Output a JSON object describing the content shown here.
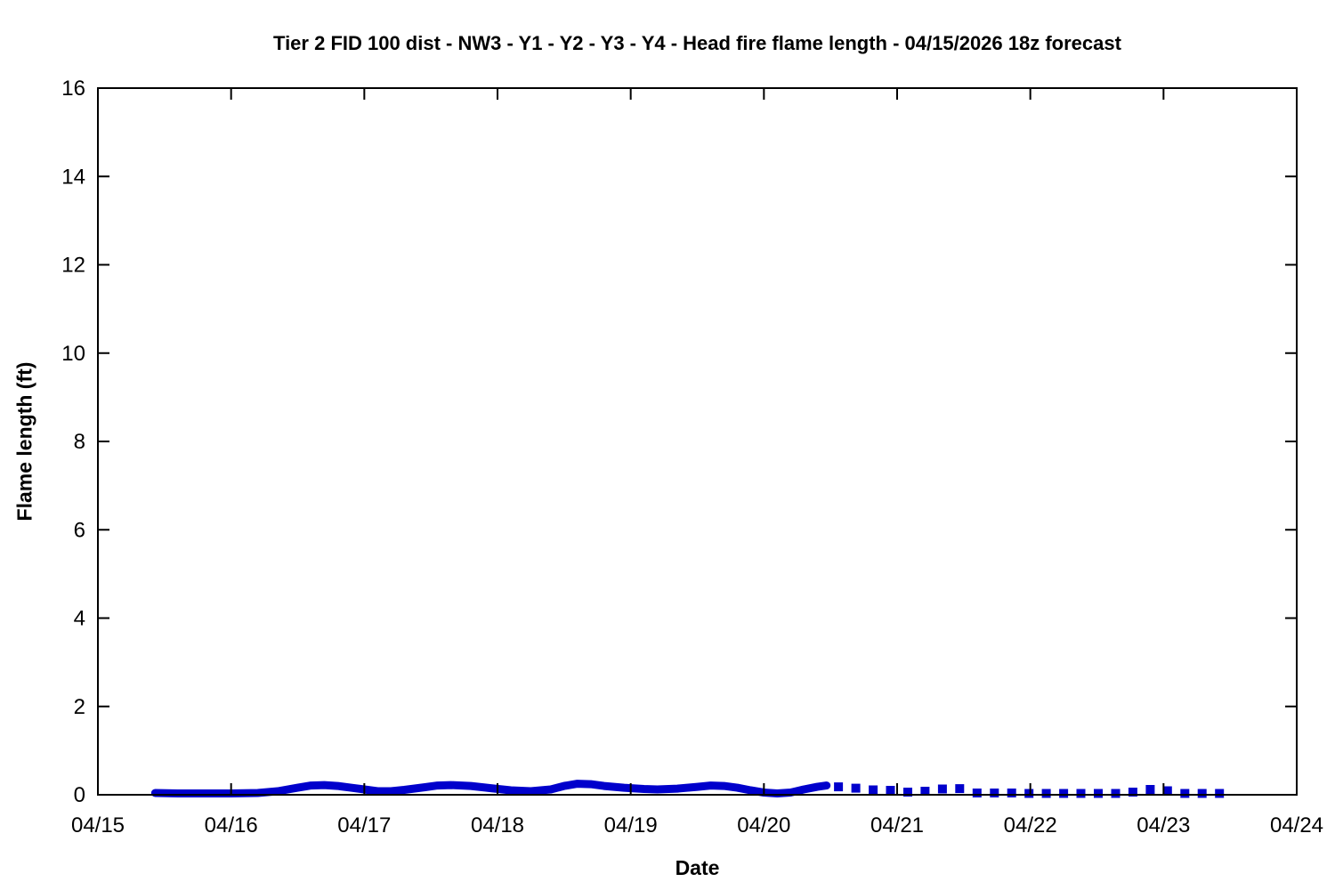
{
  "page": {
    "background": "#ffffff"
  },
  "chart_data": {
    "type": "line",
    "title": "Tier 2 FID 100 dist - NW3 - Y1 - Y2 - Y3 - Y4 - Head fire flame length - 04/15/2026 18z forecast",
    "xlabel": "Date",
    "ylabel": "Flame length (ft)",
    "x_tick_labels": [
      "04/15",
      "04/16",
      "04/17",
      "04/18",
      "04/19",
      "04/20",
      "04/21",
      "04/22",
      "04/23",
      "04/24"
    ],
    "x_tick_positions_days": [
      0,
      1,
      2,
      3,
      4,
      5,
      6,
      7,
      8,
      9
    ],
    "xlim_days": [
      0,
      9
    ],
    "y_ticks": [
      0,
      2,
      4,
      6,
      8,
      10,
      12,
      14,
      16
    ],
    "ylim": [
      0,
      16
    ],
    "grid": false,
    "legend": "none",
    "tick_style": "inward-mirrored",
    "axis_color": "#000000",
    "series_color": "#0000cc",
    "series": [
      {
        "name": "head-fire-flame-length-forecast",
        "style": "solid-line",
        "stroke_width": 9,
        "x": [
          0.43,
          0.6,
          0.8,
          1.0,
          1.2,
          1.35,
          1.5,
          1.6,
          1.7,
          1.8,
          1.9,
          2.0,
          2.1,
          2.2,
          2.3,
          2.45,
          2.55,
          2.65,
          2.8,
          2.95,
          3.1,
          3.25,
          3.4,
          3.5,
          3.6,
          3.7,
          3.8,
          3.95,
          4.1,
          4.2,
          4.35,
          4.5,
          4.6,
          4.7,
          4.8,
          4.9,
          5.0,
          5.1,
          5.2,
          5.3,
          5.4,
          5.47
        ],
        "y": [
          0.04,
          0.03,
          0.03,
          0.03,
          0.04,
          0.08,
          0.16,
          0.21,
          0.22,
          0.2,
          0.16,
          0.12,
          0.08,
          0.08,
          0.11,
          0.17,
          0.21,
          0.22,
          0.2,
          0.15,
          0.1,
          0.08,
          0.12,
          0.2,
          0.25,
          0.24,
          0.2,
          0.16,
          0.13,
          0.12,
          0.14,
          0.18,
          0.21,
          0.2,
          0.16,
          0.1,
          0.05,
          0.03,
          0.05,
          0.12,
          0.18,
          0.21
        ]
      },
      {
        "name": "head-fire-flame-length-extended-outlook",
        "style": "square-points",
        "marker_size": 10,
        "x": [
          5.56,
          5.69,
          5.82,
          5.95,
          6.08,
          6.21,
          6.34,
          6.47,
          6.6,
          6.73,
          6.86,
          6.99,
          7.12,
          7.25,
          7.38,
          7.51,
          7.64,
          7.77,
          7.9,
          8.03,
          8.16,
          8.29,
          8.42
        ],
        "y": [
          0.18,
          0.15,
          0.11,
          0.1,
          0.06,
          0.08,
          0.13,
          0.14,
          0.04,
          0.04,
          0.04,
          0.03,
          0.03,
          0.03,
          0.03,
          0.03,
          0.03,
          0.06,
          0.12,
          0.09,
          0.03,
          0.03,
          0.03
        ]
      }
    ]
  }
}
